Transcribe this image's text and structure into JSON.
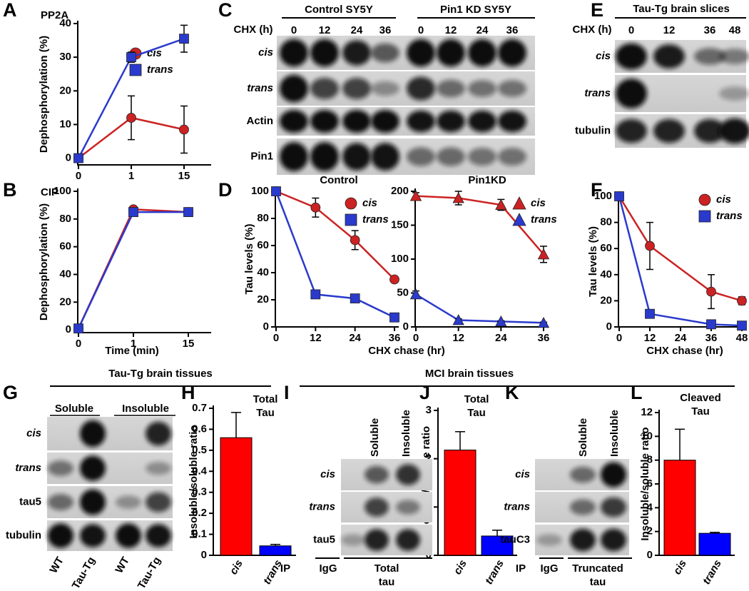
{
  "chart_data": [
    {
      "panel": "A",
      "type": "line",
      "title": "PP2A",
      "ylabel": "Dephosphorylation (%)",
      "categories": [
        "0",
        "1",
        "15"
      ],
      "ylim": [
        -2,
        40
      ],
      "yticks": [
        0,
        10,
        20,
        30,
        40
      ],
      "series": [
        {
          "name": "cis",
          "color": "#cc2222",
          "marker": "circle",
          "values": [
            0,
            12,
            8.5
          ],
          "errors": [
            0,
            6.5,
            7
          ]
        },
        {
          "name": "trans",
          "color": "#2a3acc",
          "marker": "square",
          "values": [
            0,
            30,
            35.5
          ],
          "errors": [
            0,
            1.5,
            4
          ]
        }
      ]
    },
    {
      "panel": "B",
      "type": "line",
      "title": "CIP",
      "ylabel": "Dephosphorylation (%)",
      "xlabel": "Time (min)",
      "categories": [
        "0",
        "1",
        "15"
      ],
      "ylim": [
        -2,
        100
      ],
      "yticks": [
        0,
        20,
        40,
        60,
        80,
        100
      ],
      "series": [
        {
          "color": "#cc2222",
          "marker": "circle",
          "values": [
            1,
            87,
            85
          ],
          "errors": [
            0,
            2,
            2
          ]
        },
        {
          "color": "#2a3acc",
          "marker": "square",
          "values": [
            1,
            85,
            85
          ],
          "errors": [
            0,
            3,
            3
          ]
        }
      ]
    },
    {
      "panel": "D",
      "type": "line",
      "title": "Control",
      "ylabel": "Tau levels (%)",
      "x": [
        0,
        12,
        24,
        36
      ],
      "xlim": [
        0,
        36
      ],
      "xticks": [
        0,
        12,
        24,
        36
      ],
      "ylim": [
        0,
        100
      ],
      "yticks": [
        0,
        20,
        40,
        60,
        80,
        100
      ],
      "series": [
        {
          "name": "cis",
          "color": "#cc2222",
          "marker": "circle",
          "values": [
            100,
            88,
            64,
            35
          ],
          "errors": [
            0,
            7,
            7,
            2
          ]
        },
        {
          "name": "trans",
          "color": "#2a3acc",
          "marker": "square",
          "values": [
            100,
            24,
            21,
            7
          ],
          "errors": [
            0,
            3,
            3,
            1
          ]
        }
      ]
    },
    {
      "type": "line",
      "title": "Pin1KD",
      "xlabel": "CHX chase (hr)",
      "x": [
        0,
        12,
        24,
        36
      ],
      "xlim": [
        0,
        36
      ],
      "xticks": [
        0,
        12,
        24,
        36
      ],
      "ylim": [
        0,
        200
      ],
      "yticks": [
        0,
        50,
        100,
        150,
        200
      ],
      "series": [
        {
          "name": "cis",
          "color": "#cc2222",
          "marker": "triangle",
          "values": [
            193,
            190,
            180,
            107
          ],
          "errors": [
            5,
            10,
            8,
            12
          ]
        },
        {
          "name": "trans",
          "color": "#2a3acc",
          "marker": "triangle",
          "values": [
            48,
            10,
            8,
            6
          ],
          "errors": [
            5,
            2,
            1,
            1
          ]
        }
      ]
    },
    {
      "panel": "F",
      "type": "line",
      "ylabel": "Tau levels (%)",
      "xlabel": "CHX chase (hr)",
      "x": [
        0,
        12,
        36,
        48
      ],
      "xlim": [
        0,
        48
      ],
      "xticks": [
        0,
        12,
        24,
        36,
        48
      ],
      "ylim": [
        0,
        100
      ],
      "yticks": [
        0,
        20,
        40,
        60,
        80,
        100
      ],
      "series": [
        {
          "name": "cis",
          "color": "#cc2222",
          "marker": "circle",
          "values": [
            100,
            62,
            27,
            20
          ],
          "errors": [
            0,
            18,
            13,
            3
          ]
        },
        {
          "name": "trans",
          "color": "#2a3acc",
          "marker": "square",
          "values": [
            100,
            10,
            2,
            1
          ],
          "errors": [
            0,
            1,
            1,
            1
          ]
        }
      ]
    },
    {
      "panel": "H",
      "type": "bar",
      "title": [
        "Total",
        "Tau"
      ],
      "ylabel": "Insoluble/soluble ratio",
      "categories": [
        "cis",
        "trans"
      ],
      "values": [
        0.56,
        0.045
      ],
      "errors": [
        0.12,
        0.007
      ],
      "colors": [
        "#ff0000",
        "#0000ff"
      ],
      "ylim": [
        0,
        0.7
      ],
      "yticks": [
        0,
        0.1,
        0.2,
        0.3,
        0.4,
        0.5,
        0.6,
        0.7
      ]
    },
    {
      "panel": "J",
      "type": "bar",
      "title": [
        "Total",
        "Tau"
      ],
      "ylabel": "Insoluble/soluble ratio",
      "categories": [
        "cis",
        "trans"
      ],
      "values": [
        2.18,
        0.4
      ],
      "errors": [
        0.38,
        0.12
      ],
      "colors": [
        "#ff0000",
        "#0000ff"
      ],
      "ylim": [
        0,
        3
      ],
      "yticks": [
        0,
        1,
        2,
        3
      ]
    },
    {
      "panel": "L",
      "type": "bar",
      "title": [
        "Cleaved",
        "Tau"
      ],
      "ylabel": "Insoluble/soluble ratio",
      "categories": [
        "cis",
        "trans"
      ],
      "values": [
        8,
        1.85
      ],
      "errors": [
        2.6,
        0.08
      ],
      "colors": [
        "#ff0000",
        "#0000ff"
      ],
      "ylim": [
        0,
        12
      ],
      "yticks": [
        0,
        2,
        4,
        6,
        8,
        10,
        12
      ]
    }
  ],
  "blots": {
    "C": {
      "panel": "C",
      "groups": [
        "Control SY5Y",
        "Pin1 KD SY5Y"
      ],
      "lane_header": "CHX (h)",
      "lanes": [
        "0",
        "12",
        "24",
        "36",
        "0",
        "12",
        "24",
        "36"
      ],
      "rows": [
        "cis",
        "trans",
        "Actin",
        "Pin1"
      ]
    },
    "E": {
      "panel": "E",
      "title": "Tau-Tg brain slices",
      "lane_header": "CHX (h)",
      "lanes": [
        "0",
        "12",
        "36",
        "48"
      ],
      "rows": [
        "cis",
        "trans",
        "tubulin"
      ]
    },
    "G": {
      "panel": "G",
      "title": "Tau-Tg brain tissues",
      "groups": [
        "Soluble",
        "Insoluble"
      ],
      "lanes": [
        "WT",
        "Tau-Tg",
        "WT",
        "Tau-Tg"
      ],
      "rows": [
        "cis",
        "trans",
        "tau5",
        "tubulin"
      ]
    },
    "MCI": {
      "title": "MCI brain tissues"
    },
    "I": {
      "panel": "I",
      "lanes": [
        "Soluble",
        "Insoluble"
      ],
      "rows": [
        "cis",
        "trans",
        "tau5"
      ],
      "ip": "IP",
      "ip_groups": [
        [
          "IgG"
        ],
        [
          "Total",
          "tau"
        ]
      ]
    },
    "K": {
      "panel": "K",
      "lanes": [
        "Soluble",
        "Insoluble"
      ],
      "rows": [
        "cis",
        "trans",
        "tauC3"
      ],
      "ip": "IP",
      "ip_groups": [
        [
          "IgG"
        ],
        [
          "Truncated",
          "tau"
        ]
      ]
    }
  }
}
